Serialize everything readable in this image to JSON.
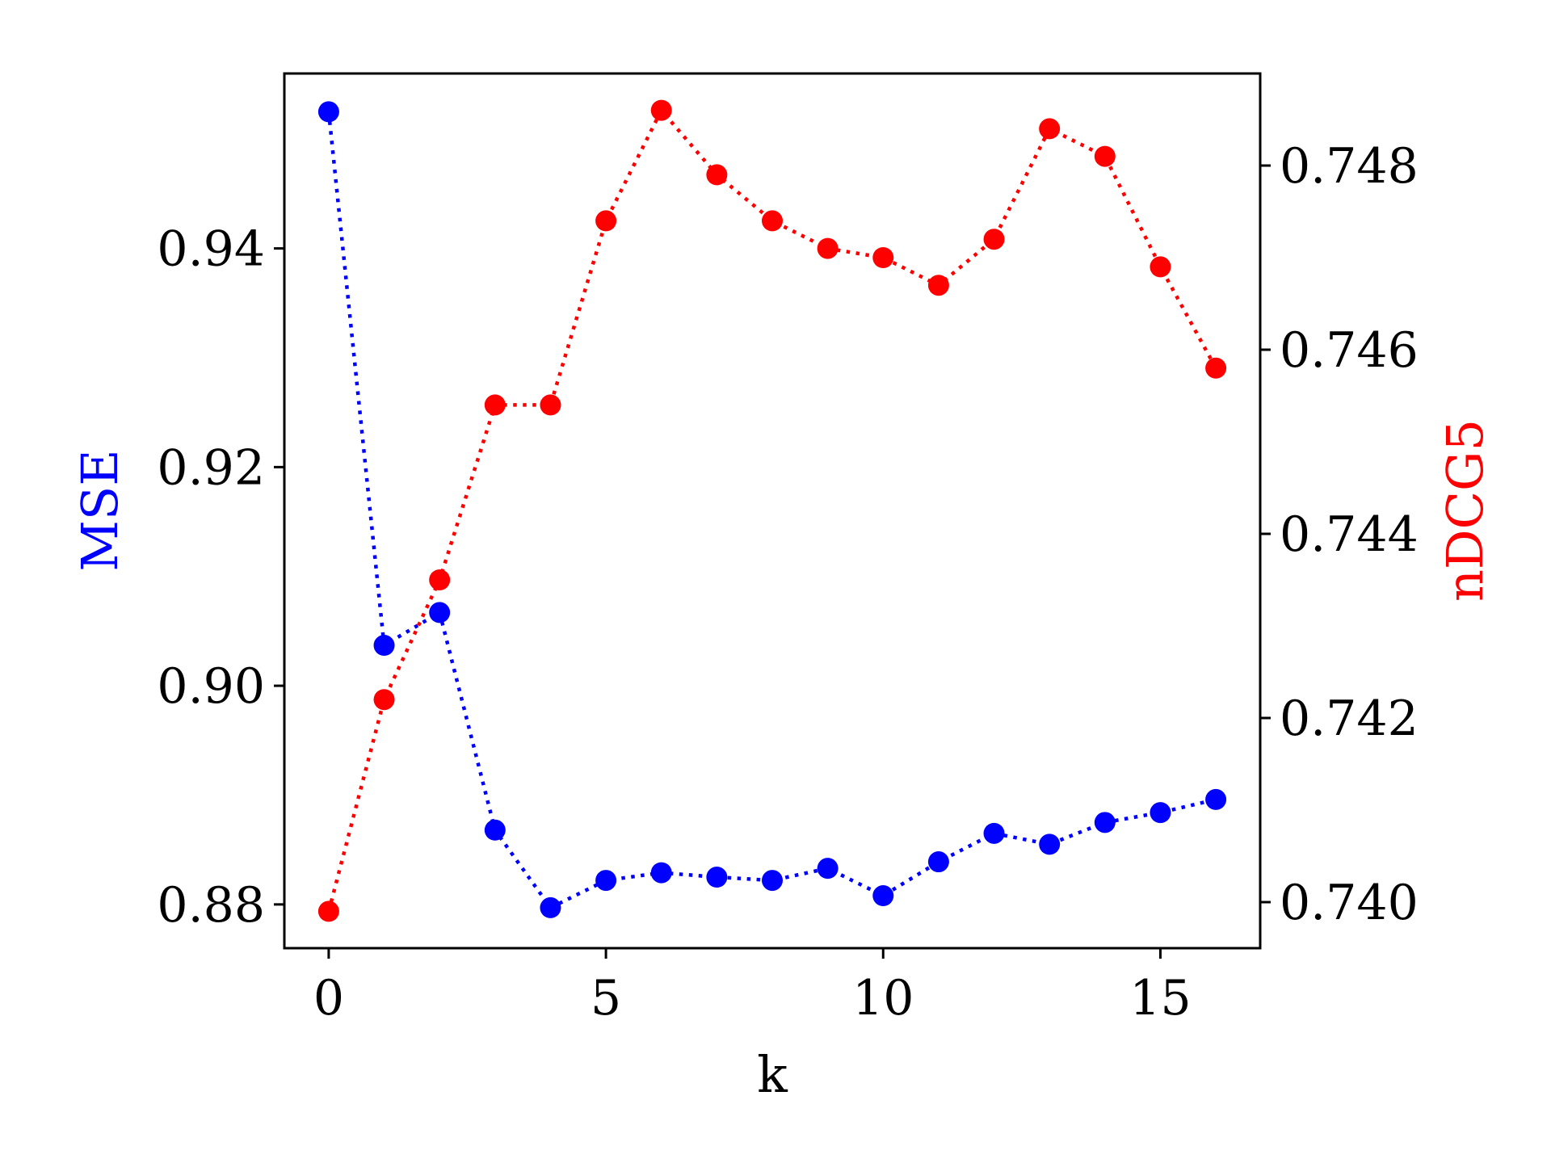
{
  "chart_data": {
    "type": "line",
    "title": "",
    "xlabel": "k",
    "ylabel_left": "MSE",
    "ylabel_right": "nDCG5",
    "x": [
      0,
      1,
      2,
      3,
      4,
      5,
      6,
      7,
      8,
      9,
      10,
      11,
      12,
      13,
      14,
      15,
      16
    ],
    "xlim": [
      -0.8,
      16.8
    ],
    "xticks": [
      0,
      5,
      10,
      15
    ],
    "ylim_left": [
      0.876,
      0.956
    ],
    "yticks_left": [
      0.88,
      0.9,
      0.92,
      0.94
    ],
    "ylim_right": [
      0.7395,
      0.749
    ],
    "yticks_right": [
      0.74,
      0.742,
      0.744,
      0.746,
      0.748
    ],
    "grid": false,
    "series": [
      {
        "name": "MSE",
        "axis": "left",
        "color": "#0000ff",
        "linestyle": "dotted",
        "marker": "circle",
        "values": [
          0.9525,
          0.9037,
          0.9067,
          0.8868,
          0.8797,
          0.8822,
          0.8829,
          0.8825,
          0.8822,
          0.8833,
          0.8808,
          0.8839,
          0.8865,
          0.8855,
          0.8875,
          0.8884,
          0.8896
        ]
      },
      {
        "name": "nDCG5",
        "axis": "right",
        "color": "#ff0000",
        "linestyle": "dotted",
        "marker": "circle",
        "values": [
          0.7399,
          0.7422,
          0.7435,
          0.7454,
          0.7454,
          0.7474,
          0.7486,
          0.7479,
          0.7474,
          0.7471,
          0.747,
          0.7467,
          0.7472,
          0.7484,
          0.7481,
          0.7469,
          0.7458
        ]
      }
    ]
  }
}
